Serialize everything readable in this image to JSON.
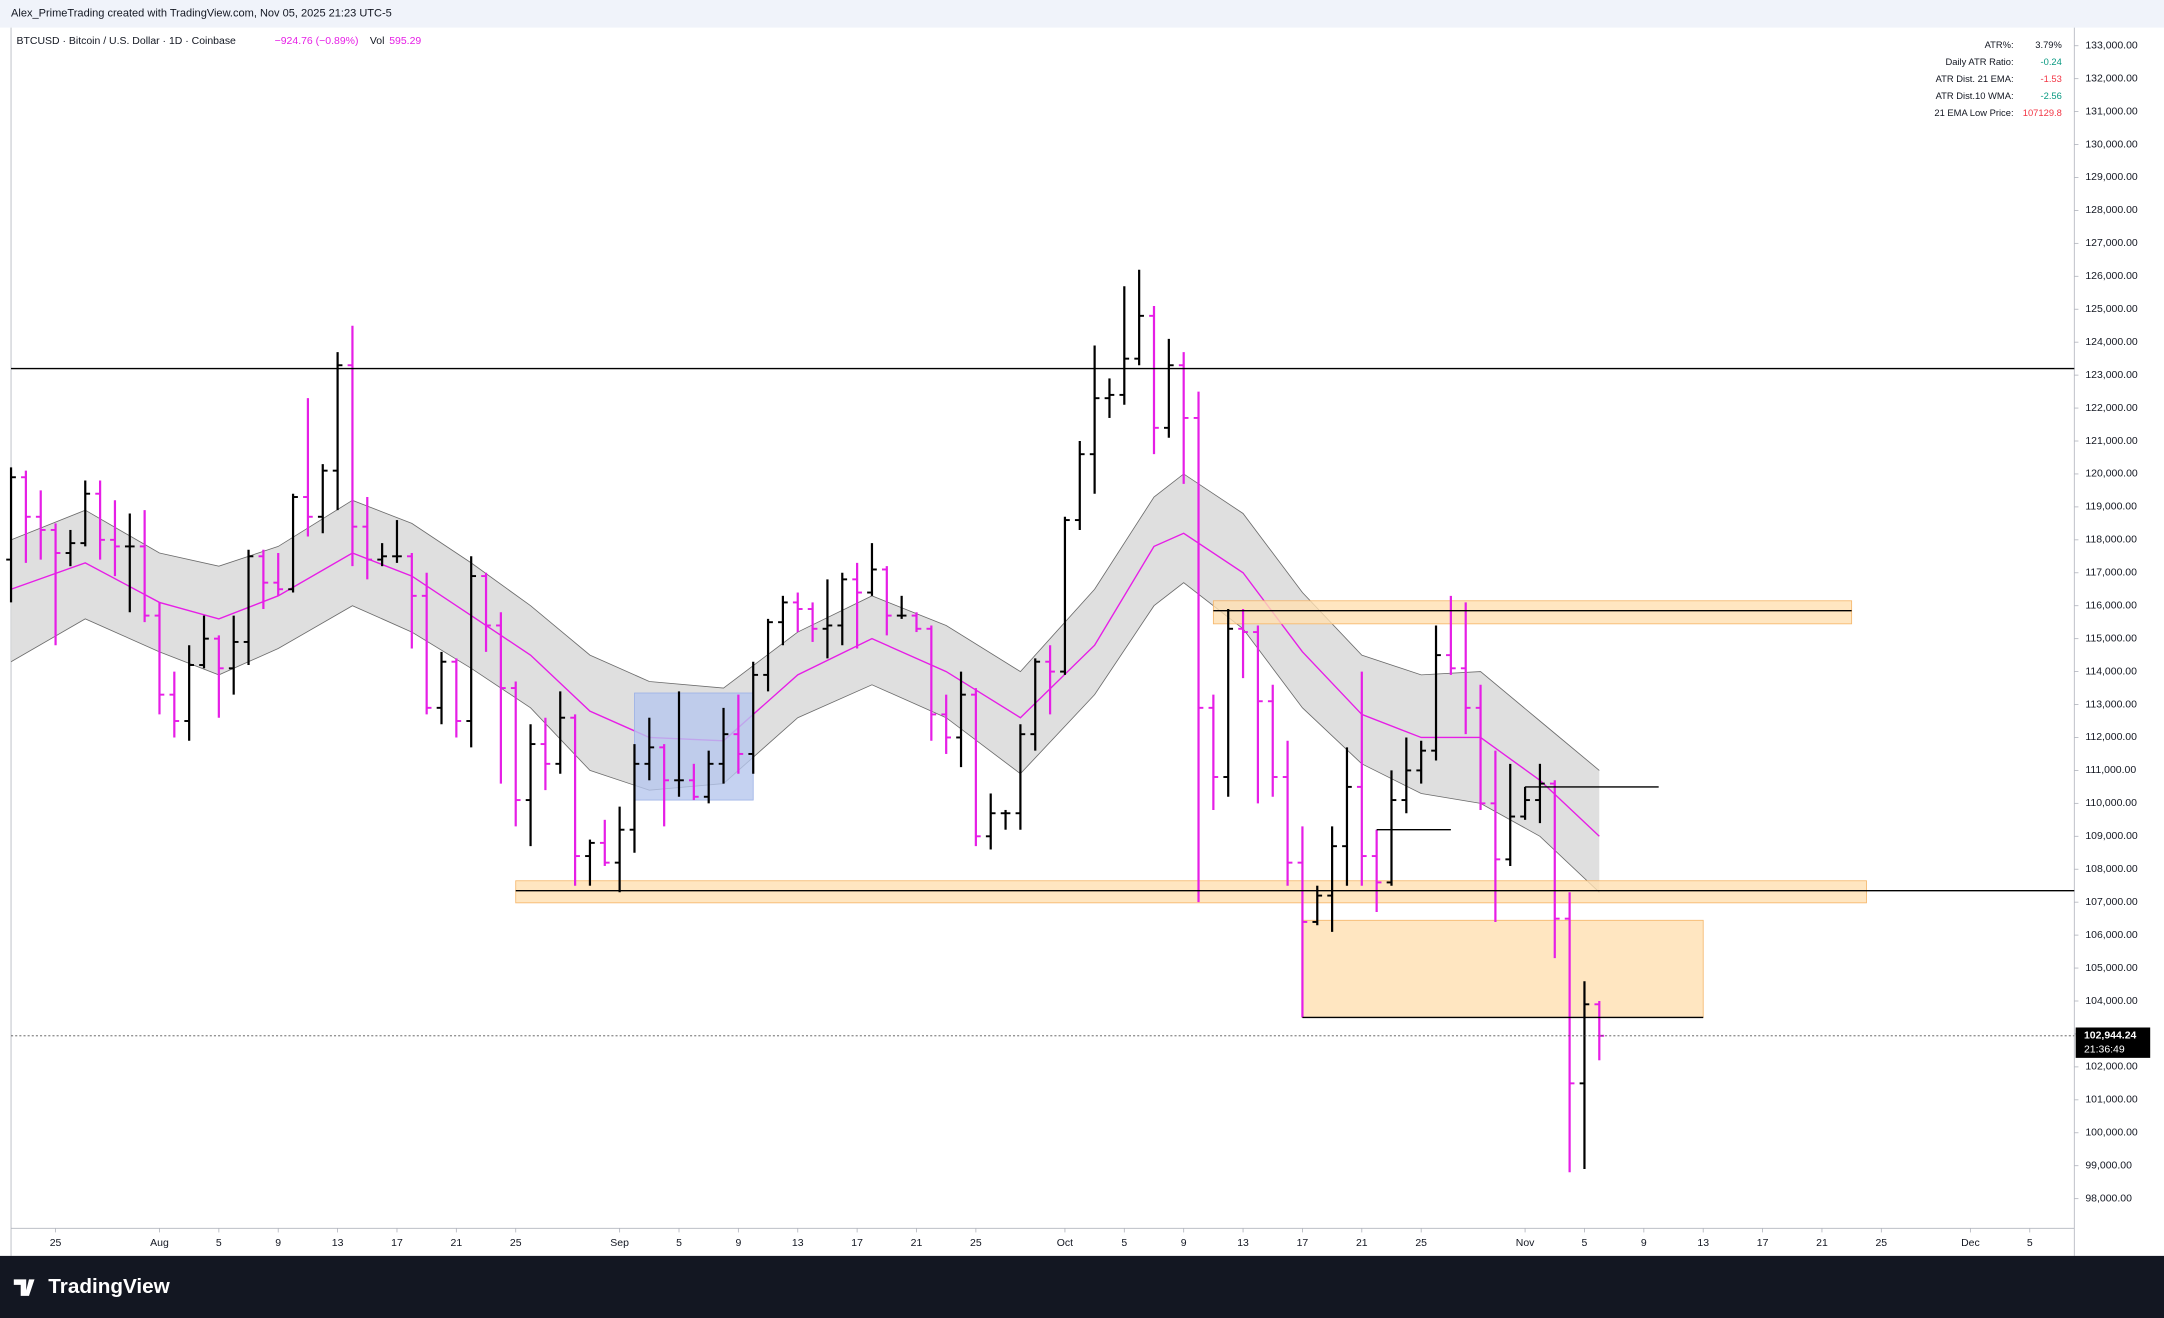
{
  "header": {
    "credit": "Alex_PrimeTrading created with TradingView.com, Nov 05, 2025 21:23 UTC-5",
    "symbol": "BTCUSD · Bitcoin / U.S. Dollar · 1D · Coinbase",
    "change": "−924.76 (−0.89%)",
    "volume_label": "Vol",
    "volume": "595.29"
  },
  "indicator_table": [
    {
      "label": "ATR%:",
      "value": "3.79%",
      "color": "#131722"
    },
    {
      "label": "Daily ATR Ratio:",
      "value": "-0.24",
      "color": "#089981"
    },
    {
      "label": "ATR Dist. 21 EMA:",
      "value": "-1.53",
      "color": "#f23645"
    },
    {
      "label": "ATR Dist.10 WMA:",
      "value": "-2.56",
      "color": "#089981"
    },
    {
      "label": "21 EMA Low Price:",
      "value": "107129.8",
      "color": "#f23645"
    }
  ],
  "footer": {
    "brand": "TradingView"
  },
  "chart_data": {
    "type": "ohlc",
    "up_color": "#000000",
    "down_color": "#e61ee6",
    "x": [
      "Jul 22",
      "Jul 23",
      "Jul 24",
      "Jul 25",
      "Jul 26",
      "Jul 27",
      "Jul 28",
      "Jul 29",
      "Jul 30",
      "Jul 31",
      "Aug 1",
      "Aug 2",
      "Aug 3",
      "Aug 4",
      "Aug 5",
      "Aug 6",
      "Aug 7",
      "Aug 8",
      "Aug 9",
      "Aug 10",
      "Aug 11",
      "Aug 12",
      "Aug 13",
      "Aug 14",
      "Aug 15",
      "Aug 16",
      "Aug 17",
      "Aug 18",
      "Aug 19",
      "Aug 20",
      "Aug 21",
      "Aug 22",
      "Aug 23",
      "Aug 24",
      "Aug 25",
      "Aug 26",
      "Aug 27",
      "Aug 28",
      "Aug 29",
      "Aug 30",
      "Aug 31",
      "Sep 1",
      "Sep 2",
      "Sep 3",
      "Sep 4",
      "Sep 5",
      "Sep 6",
      "Sep 7",
      "Sep 8",
      "Sep 9",
      "Sep 10",
      "Sep 11",
      "Sep 12",
      "Sep 13",
      "Sep 14",
      "Sep 15",
      "Sep 16",
      "Sep 17",
      "Sep 18",
      "Sep 19",
      "Sep 20",
      "Sep 21",
      "Sep 22",
      "Sep 23",
      "Sep 24",
      "Sep 25",
      "Sep 26",
      "Sep 27",
      "Sep 28",
      "Sep 29",
      "Sep 30",
      "Oct 1",
      "Oct 2",
      "Oct 3",
      "Oct 4",
      "Oct 5",
      "Oct 6",
      "Oct 7",
      "Oct 8",
      "Oct 9",
      "Oct 10",
      "Oct 11",
      "Oct 12",
      "Oct 13",
      "Oct 14",
      "Oct 15",
      "Oct 16",
      "Oct 17",
      "Oct 18",
      "Oct 19",
      "Oct 20",
      "Oct 21",
      "Oct 22",
      "Oct 23",
      "Oct 24",
      "Oct 25",
      "Oct 26",
      "Oct 27",
      "Oct 28",
      "Oct 29",
      "Oct 30",
      "Oct 31",
      "Nov 1",
      "Nov 2",
      "Nov 3",
      "Nov 4",
      "Nov 5",
      "Nov 6"
    ],
    "open": [
      117400,
      119900,
      118700,
      118300,
      117600,
      117900,
      119400,
      118000,
      117800,
      117800,
      115700,
      113300,
      112500,
      114200,
      115000,
      114100,
      114900,
      117500,
      116700,
      116500,
      119300,
      118700,
      120100,
      123300,
      118400,
      117400,
      117500,
      117500,
      116300,
      112900,
      114300,
      112500,
      116900,
      115400,
      113500,
      110100,
      111800,
      111200,
      112600,
      108400,
      108800,
      108200,
      109200,
      111200,
      111700,
      110700,
      110700,
      110200,
      111200,
      112100,
      111500,
      113900,
      115500,
      116100,
      115900,
      115300,
      115400,
      116800,
      116400,
      117100,
      115700,
      115700,
      115300,
      112700,
      112000,
      113300,
      109000,
      109700,
      109700,
      112100,
      114300,
      114000,
      118600,
      120600,
      122300,
      122400,
      123500,
      124800,
      121400,
      123300,
      121700,
      112900,
      110800,
      115300,
      115200,
      113100,
      110800,
      108200,
      106400,
      107200,
      108700,
      110500,
      108400,
      107600,
      110100,
      111000,
      111600,
      114500,
      114100,
      112900,
      110000,
      108300,
      109600,
      110100,
      110600,
      106500,
      101500,
      103900
    ],
    "high": [
      120200,
      120100,
      119500,
      118500,
      118300,
      119800,
      119800,
      119200,
      118800,
      118900,
      116100,
      114000,
      114800,
      115700,
      115100,
      115700,
      117700,
      117700,
      117600,
      119400,
      122300,
      120300,
      123700,
      124500,
      119300,
      117900,
      118600,
      117600,
      117000,
      114600,
      114400,
      117500,
      117000,
      115800,
      113700,
      112400,
      112600,
      113400,
      112700,
      108900,
      109500,
      109900,
      111800,
      112600,
      111800,
      113400,
      111200,
      111600,
      112900,
      113300,
      114300,
      115600,
      116300,
      116400,
      116100,
      116800,
      117000,
      117300,
      117900,
      117200,
      116300,
      115800,
      115400,
      113300,
      114000,
      113500,
      110300,
      109800,
      112400,
      114400,
      114800,
      118700,
      121000,
      123900,
      122900,
      125700,
      126200,
      125100,
      124100,
      123700,
      122500,
      113300,
      115900,
      115900,
      115400,
      113600,
      111900,
      109300,
      107500,
      109300,
      111700,
      114000,
      109200,
      111000,
      112000,
      111900,
      115400,
      116300,
      116100,
      113600,
      111600,
      111200,
      110500,
      111200,
      110700,
      107300,
      104600,
      104000
    ],
    "low": [
      116100,
      117300,
      117400,
      114800,
      117200,
      117800,
      117400,
      116900,
      115800,
      115500,
      112700,
      112000,
      111900,
      114100,
      112600,
      113300,
      114200,
      115900,
      116300,
      116400,
      118100,
      118200,
      118900,
      117200,
      116800,
      117200,
      117300,
      114700,
      112700,
      112400,
      112000,
      111700,
      114600,
      110600,
      109300,
      108700,
      110400,
      110900,
      107500,
      107500,
      108100,
      107300,
      108500,
      110700,
      109300,
      110200,
      110100,
      110000,
      110600,
      110900,
      110900,
      113400,
      114800,
      115200,
      114900,
      114400,
      114800,
      114700,
      116300,
      115100,
      115600,
      115200,
      111900,
      111500,
      111100,
      108700,
      108600,
      109200,
      109200,
      111600,
      112700,
      113900,
      118300,
      119400,
      121700,
      122100,
      123300,
      120600,
      121100,
      119700,
      107000,
      109800,
      110200,
      113800,
      110000,
      110200,
      107500,
      103500,
      106300,
      106100,
      107500,
      107500,
      106700,
      107500,
      109700,
      110600,
      111300,
      113900,
      112100,
      109800,
      106400,
      108100,
      109500,
      109400,
      105300,
      98800,
      98900,
      102200
    ],
    "close": [
      119900,
      118700,
      118300,
      117600,
      117900,
      119400,
      118000,
      117800,
      117800,
      115700,
      113300,
      112500,
      114200,
      115000,
      114100,
      114900,
      117500,
      116700,
      116500,
      119300,
      118700,
      120100,
      123300,
      118400,
      117400,
      117500,
      117500,
      116300,
      112900,
      114300,
      112500,
      116900,
      115400,
      113500,
      110100,
      111800,
      111200,
      112600,
      108400,
      108800,
      108200,
      109200,
      111200,
      111700,
      110700,
      110700,
      110200,
      111200,
      112100,
      111500,
      113900,
      115500,
      116100,
      115900,
      115300,
      115400,
      116800,
      116400,
      117100,
      115700,
      115700,
      115300,
      112700,
      112000,
      113300,
      109000,
      109700,
      109700,
      112100,
      114300,
      114000,
      118600,
      120600,
      122300,
      122400,
      123500,
      124800,
      121400,
      123300,
      121700,
      112900,
      110800,
      115300,
      115200,
      113100,
      110800,
      108200,
      106400,
      107200,
      108700,
      110500,
      108400,
      107600,
      110100,
      111000,
      111600,
      114500,
      114100,
      112900,
      110000,
      108300,
      109600,
      110100,
      110600,
      106500,
      101500,
      103900,
      102944.24
    ],
    "band": {
      "x": [
        "Jul 22",
        "Jul 27",
        "Aug 1",
        "Aug 5",
        "Aug 9",
        "Aug 14",
        "Aug 18",
        "Aug 22",
        "Aug 26",
        "Aug 30",
        "Sep 3",
        "Sep 8",
        "Sep 13",
        "Sep 18",
        "Sep 23",
        "Sep 28",
        "Oct 3",
        "Oct 7",
        "Oct 9",
        "Oct 13",
        "Oct 17",
        "Oct 21",
        "Oct 25",
        "Oct 29",
        "Nov 2",
        "Nov 6"
      ],
      "upper": [
        118000,
        118900,
        117600,
        117200,
        117800,
        119200,
        118500,
        117300,
        116000,
        114500,
        113700,
        113500,
        115200,
        116300,
        115400,
        114000,
        116500,
        119300,
        120000,
        118800,
        116400,
        114500,
        113900,
        114000,
        112500,
        111000
      ],
      "lower": [
        114300,
        115600,
        114600,
        113900,
        114700,
        116000,
        115200,
        114100,
        112900,
        111000,
        110400,
        110600,
        112600,
        113600,
        112600,
        110900,
        113300,
        116000,
        116700,
        115300,
        112900,
        111200,
        110300,
        110000,
        109000,
        107300
      ],
      "ema": [
        116500,
        117300,
        116100,
        115600,
        116300,
        117600,
        116900,
        115700,
        114500,
        112800,
        112000,
        111900,
        113900,
        115000,
        114000,
        112600,
        114800,
        117800,
        118200,
        117000,
        114600,
        112700,
        112000,
        112000,
        110700,
        109000
      ],
      "fill": "#d9d9d9",
      "edge": "#6b6b6b",
      "ema_color": "#e61ee6"
    },
    "zones": [
      {
        "x": [
          "Oct 11",
          "Nov 23"
        ],
        "y": [
          115450,
          116150
        ],
        "fill": "#ffe0b2",
        "edge": "#f5b66a"
      },
      {
        "x": [
          "Aug 25",
          "Nov 24"
        ],
        "y": [
          106980,
          107650
        ],
        "fill": "#ffe0b2",
        "edge": "#f5b66a"
      },
      {
        "x": [
          "Oct 17",
          "Nov 13"
        ],
        "y": [
          103500,
          106450
        ],
        "fill": "#ffe0b2",
        "edge": "#f5b66a"
      },
      {
        "x": [
          "Sep 2",
          "Sep 10"
        ],
        "y": [
          110100,
          113350
        ],
        "fill": "#b7c7ee",
        "edge": "#9db2e6"
      }
    ],
    "hlines": [
      123200
    ],
    "segments": [
      {
        "x": [
          "Oct 11",
          "Nov 23"
        ],
        "value": 115850
      },
      {
        "x": [
          "Aug 25",
          "Dec 8"
        ],
        "value": 107350
      },
      {
        "x": [
          "Oct 17",
          "Nov 13"
        ],
        "value": 103500
      },
      {
        "x": [
          "Oct 22",
          "Oct 27"
        ],
        "value": 109200
      },
      {
        "x": [
          "Nov 1",
          "Nov 10"
        ],
        "value": 110500
      }
    ],
    "last_price": {
      "value": 102944.24,
      "label": "102,944.24",
      "countdown": "21:36:49"
    },
    "xlim": [
      "Jul 22",
      "Dec 8"
    ],
    "xticks": [
      {
        "value": "Jul 25",
        "label": "25"
      },
      {
        "value": "Aug 1",
        "label": "Aug"
      },
      {
        "value": "Aug 5",
        "label": "5"
      },
      {
        "value": "Aug 9",
        "label": "9"
      },
      {
        "value": "Aug 13",
        "label": "13"
      },
      {
        "value": "Aug 17",
        "label": "17"
      },
      {
        "value": "Aug 21",
        "label": "21"
      },
      {
        "value": "Aug 25",
        "label": "25"
      },
      {
        "value": "Sep 1",
        "label": "Sep"
      },
      {
        "value": "Sep 5",
        "label": "5"
      },
      {
        "value": "Sep 9",
        "label": "9"
      },
      {
        "value": "Sep 13",
        "label": "13"
      },
      {
        "value": "Sep 17",
        "label": "17"
      },
      {
        "value": "Sep 21",
        "label": "21"
      },
      {
        "value": "Sep 25",
        "label": "25"
      },
      {
        "value": "Oct 1",
        "label": "Oct"
      },
      {
        "value": "Oct 5",
        "label": "5"
      },
      {
        "value": "Oct 9",
        "label": "9"
      },
      {
        "value": "Oct 13",
        "label": "13"
      },
      {
        "value": "Oct 17",
        "label": "17"
      },
      {
        "value": "Oct 21",
        "label": "21"
      },
      {
        "value": "Oct 25",
        "label": "25"
      },
      {
        "value": "Nov 1",
        "label": "Nov"
      },
      {
        "value": "Nov 5",
        "label": "5"
      },
      {
        "value": "Nov 9",
        "label": "9"
      },
      {
        "value": "Nov 13",
        "label": "13"
      },
      {
        "value": "Nov 17",
        "label": "17"
      },
      {
        "value": "Nov 21",
        "label": "21"
      },
      {
        "value": "Nov 25",
        "label": "25"
      },
      {
        "value": "Dec 1",
        "label": "Dec"
      },
      {
        "value": "Dec 5",
        "label": "5"
      }
    ],
    "ylim": [
      97100,
      133550
    ],
    "yticks": [
      {
        "value": 98000,
        "label": "98,000.00"
      },
      {
        "value": 99000,
        "label": "99,000.00"
      },
      {
        "value": 100000,
        "label": "100,000.00"
      },
      {
        "value": 101000,
        "label": "101,000.00"
      },
      {
        "value": 102000,
        "label": "102,000.00"
      },
      {
        "value": 103000,
        "label": "103,000.00"
      },
      {
        "value": 104000,
        "label": "104,000.00"
      },
      {
        "value": 105000,
        "label": "105,000.00"
      },
      {
        "value": 106000,
        "label": "106,000.00"
      },
      {
        "value": 107000,
        "label": "107,000.00"
      },
      {
        "value": 108000,
        "label": "108,000.00"
      },
      {
        "value": 109000,
        "label": "109,000.00"
      },
      {
        "value": 110000,
        "label": "110,000.00"
      },
      {
        "value": 111000,
        "label": "111,000.00"
      },
      {
        "value": 112000,
        "label": "112,000.00"
      },
      {
        "value": 113000,
        "label": "113,000.00"
      },
      {
        "value": 114000,
        "label": "114,000.00"
      },
      {
        "value": 115000,
        "label": "115,000.00"
      },
      {
        "value": 116000,
        "label": "116,000.00"
      },
      {
        "value": 117000,
        "label": "117,000.00"
      },
      {
        "value": 118000,
        "label": "118,000.00"
      },
      {
        "value": 119000,
        "label": "119,000.00"
      },
      {
        "value": 120000,
        "label": "120,000.00"
      },
      {
        "value": 121000,
        "label": "121,000.00"
      },
      {
        "value": 122000,
        "label": "122,000.00"
      },
      {
        "value": 123000,
        "label": "123,000.00"
      },
      {
        "value": 124000,
        "label": "124,000.00"
      },
      {
        "value": 125000,
        "label": "125,000.00"
      },
      {
        "value": 126000,
        "label": "126,000.00"
      },
      {
        "value": 127000,
        "label": "127,000.00"
      },
      {
        "value": 128000,
        "label": "128,000.00"
      },
      {
        "value": 129000,
        "label": "129,000.00"
      },
      {
        "value": 130000,
        "label": "130,000.00"
      },
      {
        "value": 131000,
        "label": "131,000.00"
      },
      {
        "value": 132000,
        "label": "132,000.00"
      },
      {
        "value": 133000,
        "label": "133,000.00"
      }
    ]
  }
}
